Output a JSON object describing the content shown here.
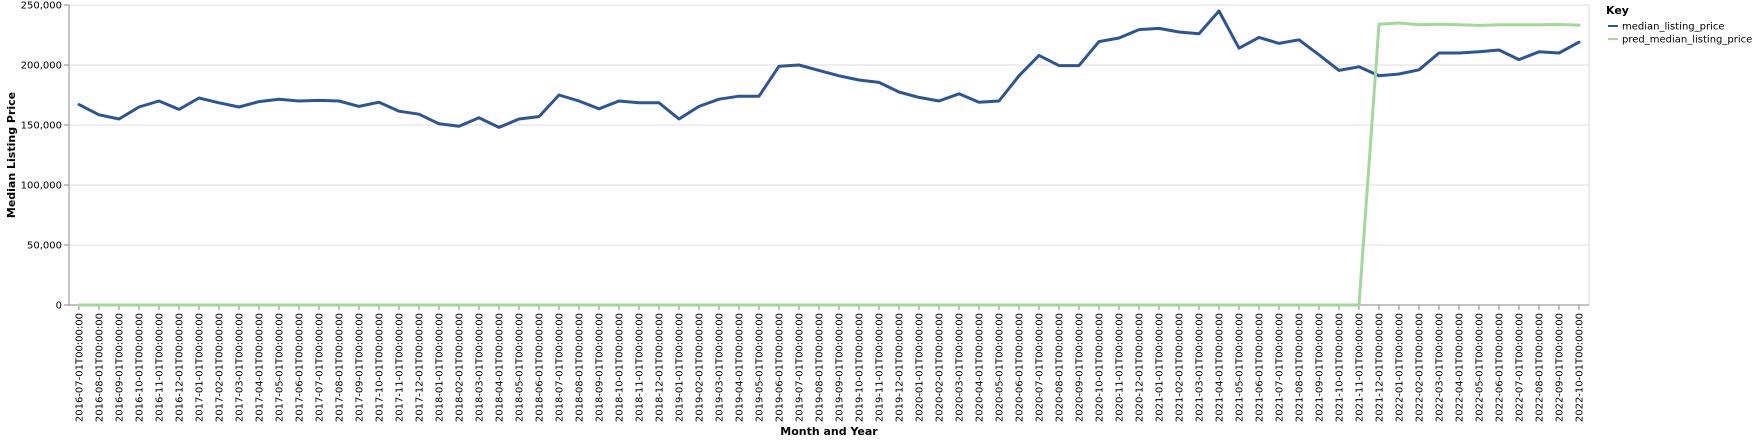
{
  "chart_data": {
    "type": "line",
    "xlabel": "Month and Year",
    "ylabel": "Median Listing Price",
    "ylim": [
      0,
      250000
    ],
    "y_ticks": [
      0,
      50000,
      100000,
      150000,
      200000,
      250000
    ],
    "y_tick_labels": [
      "0",
      "50,000",
      "100,000",
      "150,000",
      "200,000",
      "250,000"
    ],
    "grid": true,
    "legend": {
      "title": "Key",
      "placement": "top-right"
    },
    "x": [
      "2016-07-01T00:00:00",
      "2016-08-01T00:00:00",
      "2016-09-01T00:00:00",
      "2016-10-01T00:00:00",
      "2016-11-01T00:00:00",
      "2016-12-01T00:00:00",
      "2017-01-01T00:00:00",
      "2017-02-01T00:00:00",
      "2017-03-01T00:00:00",
      "2017-04-01T00:00:00",
      "2017-05-01T00:00:00",
      "2017-06-01T00:00:00",
      "2017-07-01T00:00:00",
      "2017-08-01T00:00:00",
      "2017-09-01T00:00:00",
      "2017-10-01T00:00:00",
      "2017-11-01T00:00:00",
      "2017-12-01T00:00:00",
      "2018-01-01T00:00:00",
      "2018-02-01T00:00:00",
      "2018-03-01T00:00:00",
      "2018-04-01T00:00:00",
      "2018-05-01T00:00:00",
      "2018-06-01T00:00:00",
      "2018-07-01T00:00:00",
      "2018-08-01T00:00:00",
      "2018-09-01T00:00:00",
      "2018-10-01T00:00:00",
      "2018-11-01T00:00:00",
      "2018-12-01T00:00:00",
      "2019-01-01T00:00:00",
      "2019-02-01T00:00:00",
      "2019-03-01T00:00:00",
      "2019-04-01T00:00:00",
      "2019-05-01T00:00:00",
      "2019-06-01T00:00:00",
      "2019-07-01T00:00:00",
      "2019-08-01T00:00:00",
      "2019-09-01T00:00:00",
      "2019-10-01T00:00:00",
      "2019-11-01T00:00:00",
      "2019-12-01T00:00:00",
      "2020-01-01T00:00:00",
      "2020-02-01T00:00:00",
      "2020-03-01T00:00:00",
      "2020-04-01T00:00:00",
      "2020-05-01T00:00:00",
      "2020-06-01T00:00:00",
      "2020-07-01T00:00:00",
      "2020-08-01T00:00:00",
      "2020-09-01T00:00:00",
      "2020-10-01T00:00:00",
      "2020-11-01T00:00:00",
      "2020-12-01T00:00:00",
      "2021-01-01T00:00:00",
      "2021-02-01T00:00:00",
      "2021-03-01T00:00:00",
      "2021-04-01T00:00:00",
      "2021-05-01T00:00:00",
      "2021-06-01T00:00:00",
      "2021-07-01T00:00:00",
      "2021-08-01T00:00:00",
      "2021-09-01T00:00:00",
      "2021-10-01T00:00:00",
      "2021-11-01T00:00:00",
      "2021-12-01T00:00:00",
      "2022-01-01T00:00:00",
      "2022-02-01T00:00:00",
      "2022-03-01T00:00:00",
      "2022-04-01T00:00:00",
      "2022-05-01T00:00:00",
      "2022-06-01T00:00:00",
      "2022-07-01T00:00:00",
      "2022-08-01T00:00:00",
      "2022-09-01T00:00:00",
      "2022-10-01T00:00:00"
    ],
    "series": [
      {
        "name": "median_listing_price",
        "color": "#2c5596",
        "values": [
          167000,
          158500,
          155000,
          165000,
          170000,
          163000,
          172500,
          168500,
          165000,
          169500,
          171500,
          170000,
          170500,
          170000,
          165500,
          169000,
          161500,
          159000,
          151000,
          149000,
          156000,
          148000,
          155000,
          157000,
          175000,
          170000,
          163500,
          170000,
          168500,
          168500,
          155000,
          165500,
          171500,
          174000,
          174000,
          199000,
          200000,
          195500,
          191000,
          187500,
          185500,
          177500,
          173000,
          170000,
          176000,
          169000,
          170000,
          191000,
          208000,
          199500,
          199500,
          219500,
          222500,
          229500,
          230500,
          227500,
          226000,
          245000,
          214000,
          223000,
          218000,
          221000,
          208500,
          195500,
          198500,
          191000,
          192500,
          196000,
          210000,
          210000,
          211000,
          212500,
          204500,
          211000,
          210000,
          219000
        ]
      },
      {
        "name": "pred_median_listing_price",
        "color": "#a1d99b",
        "values": [
          0,
          0,
          0,
          0,
          0,
          0,
          0,
          0,
          0,
          0,
          0,
          0,
          0,
          0,
          0,
          0,
          0,
          0,
          0,
          0,
          0,
          0,
          0,
          0,
          0,
          0,
          0,
          0,
          0,
          0,
          0,
          0,
          0,
          0,
          0,
          0,
          0,
          0,
          0,
          0,
          0,
          0,
          0,
          0,
          0,
          0,
          0,
          0,
          0,
          0,
          0,
          0,
          0,
          0,
          0,
          0,
          0,
          0,
          0,
          0,
          0,
          0,
          0,
          0,
          0,
          234000,
          235000,
          233500,
          234000,
          233500,
          233000,
          233500,
          233500,
          233500,
          233800,
          233200
        ]
      }
    ]
  }
}
